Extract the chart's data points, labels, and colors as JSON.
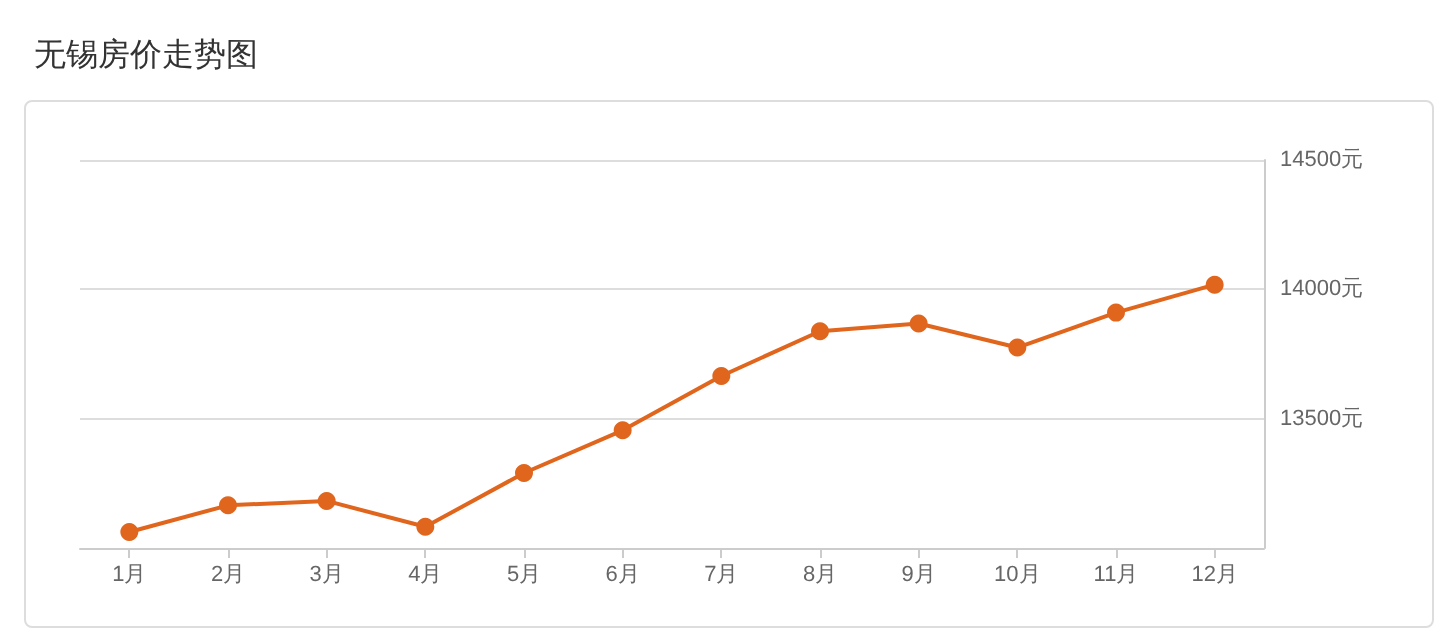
{
  "chart_data": {
    "type": "line",
    "title": "无锡房价走势图",
    "categories": [
      "1月",
      "2月",
      "3月",
      "4月",
      "5月",
      "6月",
      "7月",
      "8月",
      "9月",
      "10月",
      "11月",
      "12月"
    ],
    "series": [
      {
        "color": "#e0661e",
        "values": [
          13062,
          13165,
          13182,
          13082,
          13290,
          13455,
          13665,
          13838,
          13868,
          13775,
          13910,
          14018
        ]
      }
    ],
    "ylim": [
      13000,
      14500
    ],
    "yticks": [
      {
        "value": 13000,
        "label": null
      },
      {
        "value": 13500,
        "label": "13500元"
      },
      {
        "value": 14000,
        "label": "14000元"
      },
      {
        "value": 14500,
        "label": "14500元"
      }
    ],
    "grid": "y",
    "marker": "circle",
    "line_style": "solid"
  }
}
